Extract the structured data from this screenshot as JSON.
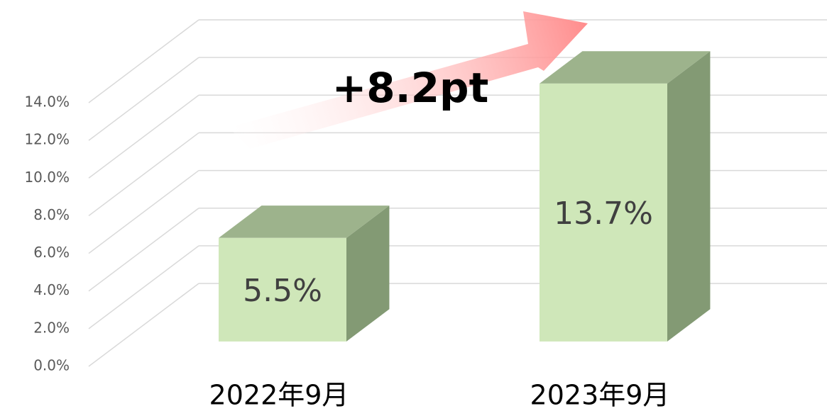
{
  "chart_data": {
    "type": "bar",
    "categories": [
      "2022年9月",
      "2023年9月"
    ],
    "values": [
      5.5,
      13.7
    ],
    "value_labels": [
      "5.5%",
      "13.7%"
    ],
    "color": "#cfe7b9",
    "ylim": [
      0,
      14
    ],
    "yticks": [
      {
        "value": 0,
        "label": "0.0%"
      },
      {
        "value": 2,
        "label": "2.0%"
      },
      {
        "value": 4,
        "label": "4.0%"
      },
      {
        "value": 6,
        "label": "6.0%"
      },
      {
        "value": 8,
        "label": "8.0%"
      },
      {
        "value": 10,
        "label": "10.0%"
      },
      {
        "value": 12,
        "label": "12.0%"
      },
      {
        "value": 14,
        "label": "14.0%"
      }
    ],
    "grid": true,
    "annotation": "+8.2pt"
  }
}
